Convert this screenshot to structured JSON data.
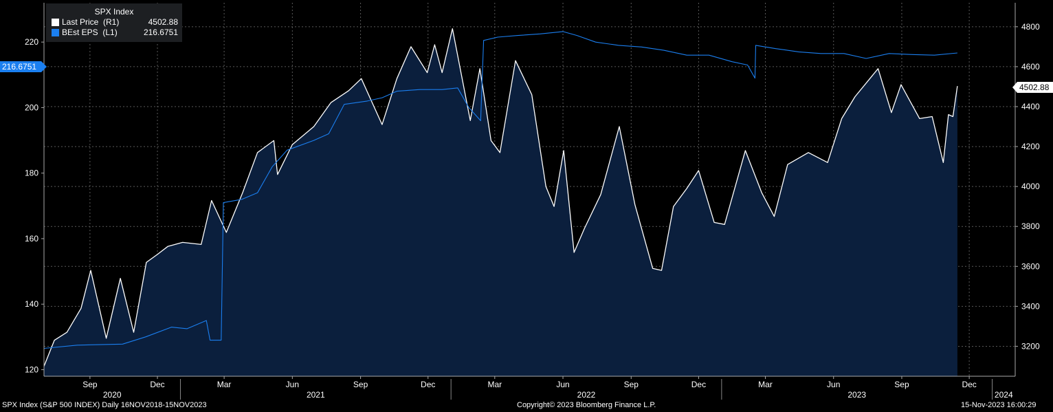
{
  "legend": {
    "title": "SPX Index",
    "series": [
      {
        "label": "Last Price  (R1)",
        "value": "4502.88",
        "color": "#ffffff"
      },
      {
        "label": "BEst EPS  (L1)",
        "value": "216.6751",
        "color": "#1b7ff0"
      }
    ]
  },
  "tags": {
    "left": "216.6751",
    "right": "4502.88"
  },
  "footer": {
    "left": "SPX Index (S&P 500 INDEX)  Daily 16NOV2018-15NOV2023",
    "center": "Copyright© 2023 Bloomberg Finance L.P.",
    "right": "15-Nov-2023 16:00:29"
  },
  "chart_data": {
    "type": "line",
    "x_start": "2020-07",
    "x_end": "2023-11-15",
    "xlim": [
      "2020-07",
      "2024-02"
    ],
    "month_ticks": [
      "Sep",
      "Dec",
      "Mar",
      "Jun",
      "Sep",
      "Dec",
      "Mar",
      "Jun",
      "Sep",
      "Dec",
      "Mar",
      "Jun",
      "Sep",
      "Dec"
    ],
    "year_labels": [
      "2020",
      "2021",
      "2022",
      "2023",
      "2024"
    ],
    "y_left": {
      "ticks": [
        120,
        140,
        160,
        180,
        200,
        220
      ],
      "lim": [
        118,
        232
      ]
    },
    "y_right": {
      "ticks": [
        3200,
        3400,
        3600,
        3800,
        4000,
        4200,
        4400,
        4600,
        4800
      ],
      "lim": [
        3050,
        4920
      ]
    },
    "series": [
      {
        "name": "Last Price",
        "axis": "right",
        "color": "#ffffff",
        "fill": "#0b1f3d",
        "points": [
          [
            "2020-07-01",
            3100
          ],
          [
            "2020-07-15",
            3230
          ],
          [
            "2020-08-01",
            3270
          ],
          [
            "2020-08-20",
            3390
          ],
          [
            "2020-09-02",
            3580
          ],
          [
            "2020-09-23",
            3240
          ],
          [
            "2020-10-12",
            3540
          ],
          [
            "2020-10-30",
            3270
          ],
          [
            "2020-11-16",
            3620
          ],
          [
            "2020-12-01",
            3660
          ],
          [
            "2020-12-15",
            3700
          ],
          [
            "2021-01-04",
            3720
          ],
          [
            "2021-01-29",
            3710
          ],
          [
            "2021-02-12",
            3930
          ],
          [
            "2021-03-04",
            3770
          ],
          [
            "2021-03-26",
            3970
          ],
          [
            "2021-04-15",
            4170
          ],
          [
            "2021-05-07",
            4230
          ],
          [
            "2021-05-12",
            4060
          ],
          [
            "2021-06-01",
            4210
          ],
          [
            "2021-06-30",
            4300
          ],
          [
            "2021-07-23",
            4420
          ],
          [
            "2021-08-16",
            4480
          ],
          [
            "2021-09-02",
            4540
          ],
          [
            "2021-09-30",
            4310
          ],
          [
            "2021-10-20",
            4540
          ],
          [
            "2021-11-08",
            4700
          ],
          [
            "2021-11-30",
            4570
          ],
          [
            "2021-12-10",
            4710
          ],
          [
            "2021-12-20",
            4570
          ],
          [
            "2022-01-03",
            4790
          ],
          [
            "2022-01-27",
            4330
          ],
          [
            "2022-02-09",
            4590
          ],
          [
            "2022-02-24",
            4230
          ],
          [
            "2022-03-08",
            4170
          ],
          [
            "2022-03-29",
            4630
          ],
          [
            "2022-04-20",
            4460
          ],
          [
            "2022-05-09",
            4000
          ],
          [
            "2022-05-20",
            3900
          ],
          [
            "2022-06-02",
            4180
          ],
          [
            "2022-06-16",
            3670
          ],
          [
            "2022-06-30",
            3790
          ],
          [
            "2022-07-22",
            3960
          ],
          [
            "2022-08-16",
            4300
          ],
          [
            "2022-09-06",
            3910
          ],
          [
            "2022-09-30",
            3590
          ],
          [
            "2022-10-12",
            3580
          ],
          [
            "2022-10-28",
            3900
          ],
          [
            "2022-11-15",
            3990
          ],
          [
            "2022-12-01",
            4080
          ],
          [
            "2022-12-22",
            3820
          ],
          [
            "2023-01-05",
            3810
          ],
          [
            "2023-02-02",
            4180
          ],
          [
            "2023-02-24",
            3970
          ],
          [
            "2023-03-13",
            3850
          ],
          [
            "2023-03-31",
            4110
          ],
          [
            "2023-04-28",
            4170
          ],
          [
            "2023-05-24",
            4120
          ],
          [
            "2023-06-12",
            4340
          ],
          [
            "2023-06-30",
            4450
          ],
          [
            "2023-07-31",
            4590
          ],
          [
            "2023-08-18",
            4370
          ],
          [
            "2023-08-31",
            4510
          ],
          [
            "2023-09-25",
            4340
          ],
          [
            "2023-10-12",
            4350
          ],
          [
            "2023-10-27",
            4120
          ],
          [
            "2023-11-03",
            4360
          ],
          [
            "2023-11-09",
            4350
          ],
          [
            "2023-11-15",
            4502.88
          ]
        ]
      },
      {
        "name": "BEst EPS",
        "axis": "left",
        "color": "#1b7ff0",
        "points": [
          [
            "2020-07-01",
            126.5
          ],
          [
            "2020-08-15",
            127.5
          ],
          [
            "2020-10-15",
            127.8
          ],
          [
            "2020-11-15",
            130
          ],
          [
            "2020-12-20",
            133
          ],
          [
            "2021-01-10",
            132.5
          ],
          [
            "2021-02-05",
            135
          ],
          [
            "2021-02-10",
            129
          ],
          [
            "2021-02-25",
            129
          ],
          [
            "2021-02-28",
            171
          ],
          [
            "2021-03-25",
            172
          ],
          [
            "2021-04-15",
            174
          ],
          [
            "2021-05-05",
            182
          ],
          [
            "2021-05-25",
            187
          ],
          [
            "2021-06-30",
            190
          ],
          [
            "2021-07-20",
            192
          ],
          [
            "2021-08-10",
            201
          ],
          [
            "2021-09-10",
            202
          ],
          [
            "2021-09-30",
            203
          ],
          [
            "2021-10-20",
            205
          ],
          [
            "2021-11-20",
            205.5
          ],
          [
            "2021-12-20",
            205.5
          ],
          [
            "2022-01-10",
            206
          ],
          [
            "2022-01-25",
            200
          ],
          [
            "2022-02-10",
            196
          ],
          [
            "2022-02-14",
            220.5
          ],
          [
            "2022-03-05",
            221.5
          ],
          [
            "2022-04-01",
            222
          ],
          [
            "2022-05-01",
            222.5
          ],
          [
            "2022-06-01",
            223.2
          ],
          [
            "2022-06-20",
            222
          ],
          [
            "2022-07-15",
            220
          ],
          [
            "2022-08-15",
            219
          ],
          [
            "2022-09-15",
            218.5
          ],
          [
            "2022-10-15",
            217.5
          ],
          [
            "2022-11-15",
            216
          ],
          [
            "2022-12-15",
            216
          ],
          [
            "2023-01-15",
            214
          ],
          [
            "2023-02-05",
            213
          ],
          [
            "2023-02-15",
            209
          ],
          [
            "2023-02-16",
            219
          ],
          [
            "2023-03-15",
            218
          ],
          [
            "2023-04-15",
            217
          ],
          [
            "2023-05-15",
            216.5
          ],
          [
            "2023-06-15",
            216.5
          ],
          [
            "2023-07-15",
            215
          ],
          [
            "2023-08-15",
            216.5
          ],
          [
            "2023-09-15",
            216.2
          ],
          [
            "2023-10-15",
            216
          ],
          [
            "2023-11-15",
            216.6751
          ]
        ]
      }
    ]
  }
}
